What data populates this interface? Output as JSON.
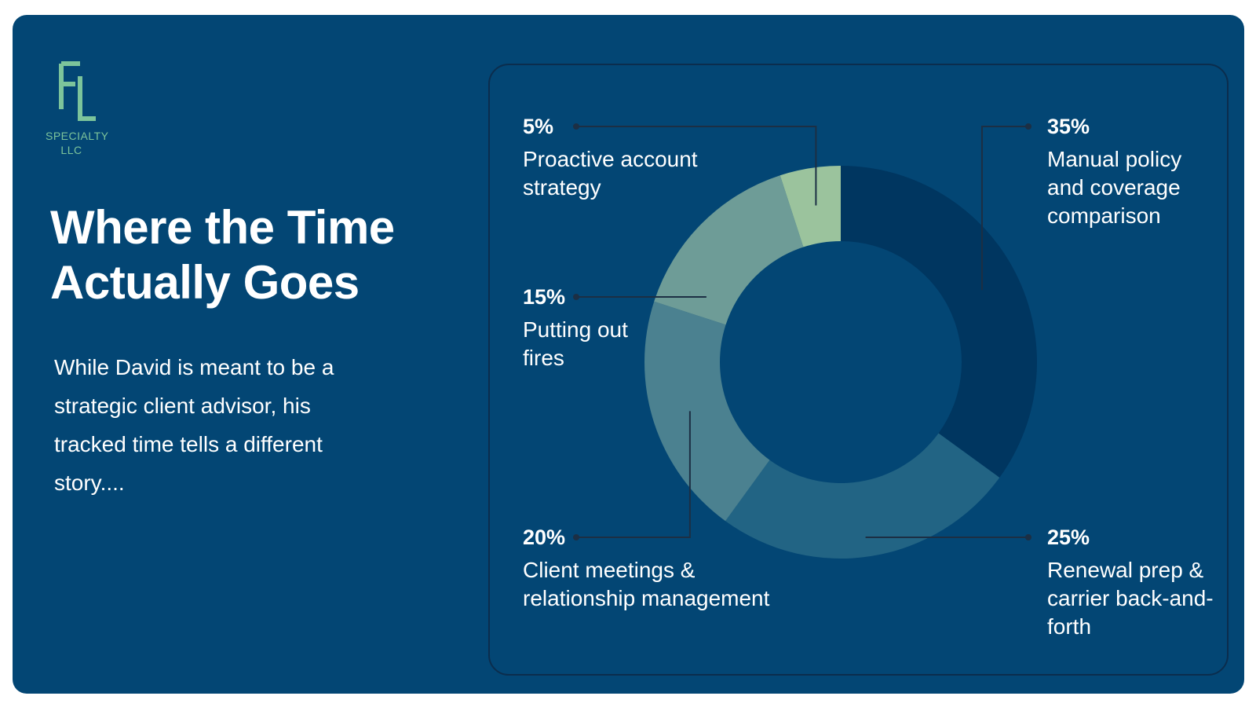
{
  "colors": {
    "background": "#034674",
    "panel_border": "#0b2d4d",
    "leader_line": "#1c2f44",
    "logo": "#7cc49b",
    "slices": [
      "#003660",
      "#226484",
      "#4b8190",
      "#6e9c97",
      "#9bc39d"
    ]
  },
  "logo": {
    "icon": "fl-monogram-logo",
    "line1": "SPECIALTY",
    "line2": "LLC"
  },
  "headline": "Where the Time Actually Goes",
  "body": "While David is meant to be a strategic client advisor, his tracked time tells a different story....",
  "chart_data": {
    "type": "pie",
    "variant": "donut",
    "title": "",
    "unit": "%",
    "categories": [
      "Manual policy and coverage comparison",
      "Renewal prep & carrier back-and-forth",
      "Client meetings & relationship management",
      "Putting out fires",
      "Proactive account strategy"
    ],
    "values": [
      35,
      25,
      20,
      15,
      5
    ],
    "value_labels": [
      "35%",
      "25%",
      "20%",
      "15%",
      "5%"
    ],
    "legend": "none",
    "labels_position": "outside-callouts"
  }
}
